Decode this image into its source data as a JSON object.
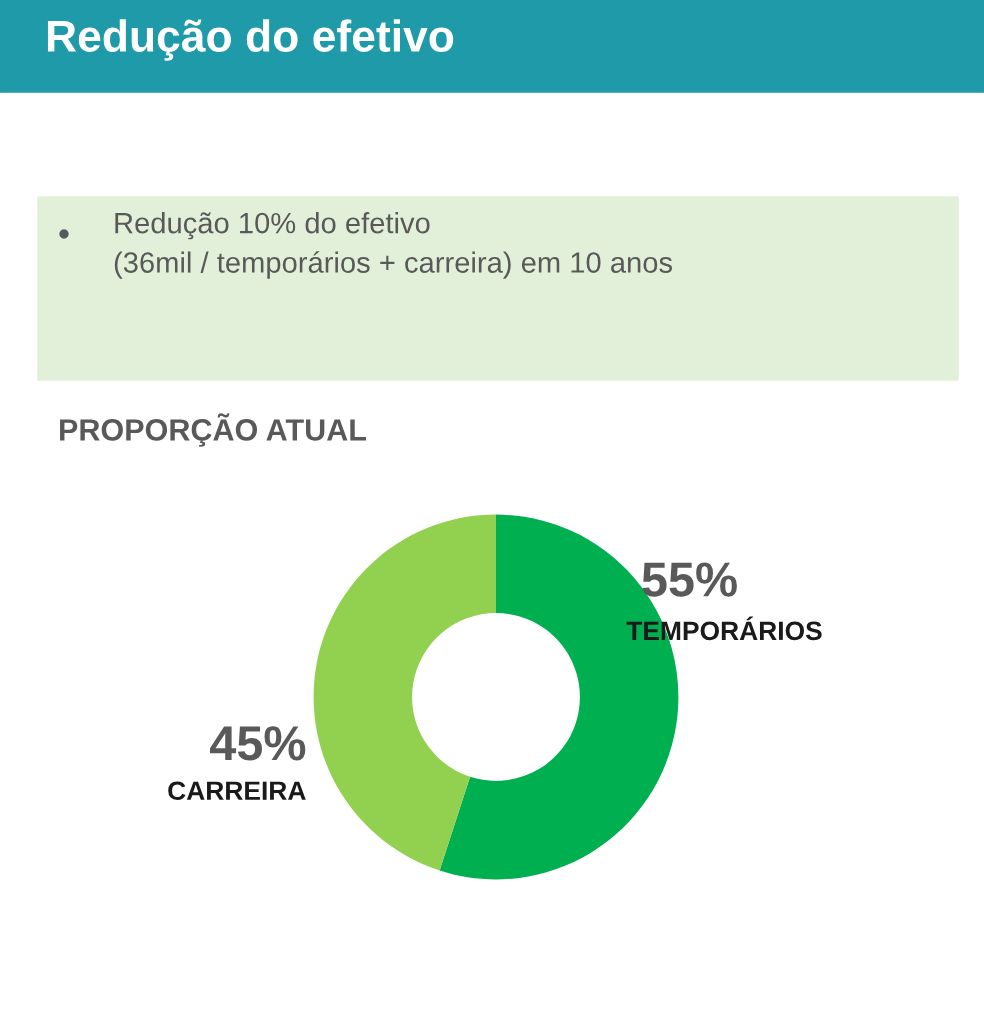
{
  "chart_data": {
    "type": "donut",
    "title": "Redução do efetivo",
    "subtitle": "PROPORÇÃO ATUAL",
    "annotations": [
      "Redução 10% do efetivo\n(36mil / temporários + carreira) em 10 anos"
    ],
    "categories": [
      "TEMPORÁRIOS",
      "CARREIRA"
    ],
    "values": [
      55,
      45
    ],
    "colors": [
      "#00b050",
      "#92d050"
    ],
    "value_labels": [
      "55%",
      "45%"
    ],
    "legend": false
  }
}
